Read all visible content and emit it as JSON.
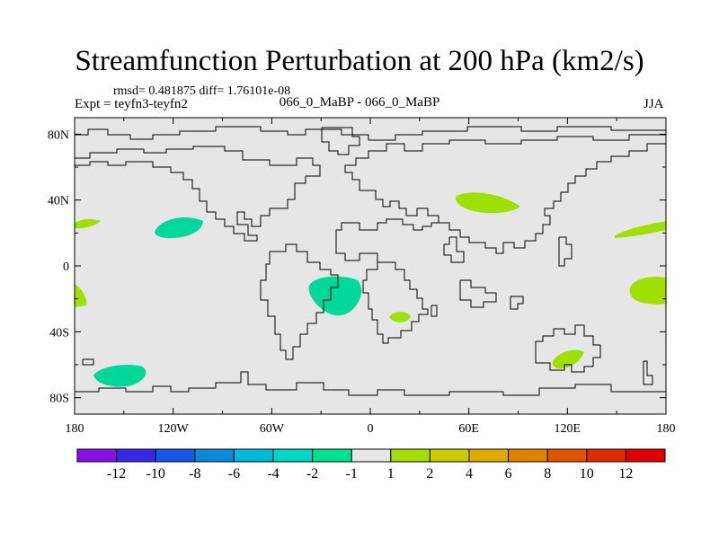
{
  "title": "Streamfunction Perturbation at 200 hPa (km2/s)",
  "stats": "rmsd= 0.481875  diff= 1.76101e-08",
  "left_label": "Expt = teyfn3-teyfn2",
  "center_label": "066_0_MaBP - 066_0_MaBP",
  "right_label": "JJA",
  "map_data": {
    "type": "contour-fill",
    "projection": "cylindrical-equidistant",
    "lon_range": [
      -180,
      180
    ],
    "lat_range": [
      -90,
      90
    ],
    "x_ticks": [
      "180",
      "120W",
      "60W",
      "0",
      "60E",
      "120E",
      "180"
    ],
    "y_ticks": [
      "80N",
      "40N",
      "0",
      "40S",
      "80S"
    ],
    "colors": {
      "background": "#e6e6e6",
      "coastline": "#000000",
      "positive_fill": "#a0e000",
      "negative_fill": "#00d898"
    }
  },
  "colorbar": {
    "labels": [
      "-12",
      "-10",
      "-8",
      "-6",
      "-4",
      "-2",
      "-1",
      "1",
      "2",
      "4",
      "6",
      "8",
      "10",
      "12"
    ],
    "colors": [
      "#8a0fe6",
      "#3a28e8",
      "#1658e8",
      "#0c8ad9",
      "#00b8dc",
      "#00d6c8",
      "#00e090",
      "#e6e6e6",
      "#a4dd00",
      "#c8cc00",
      "#e0aa00",
      "#e28000",
      "#e05300",
      "#e02a00",
      "#e00000"
    ]
  }
}
